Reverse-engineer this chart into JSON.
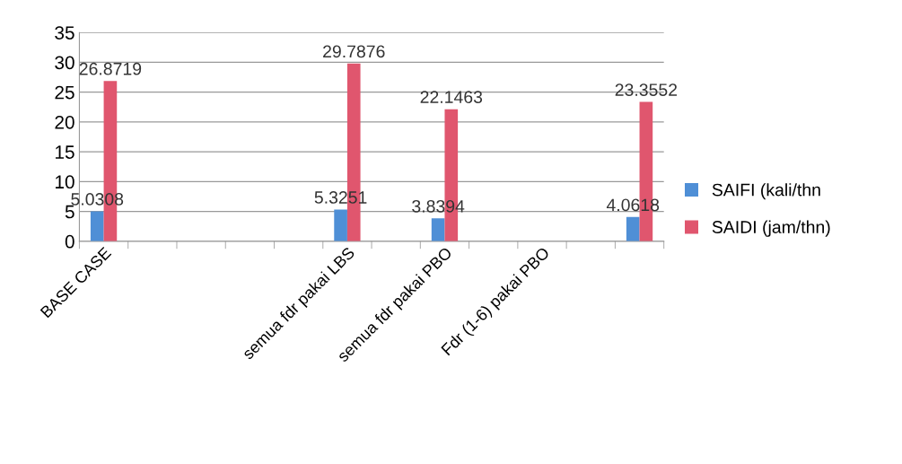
{
  "chart_data": {
    "type": "bar",
    "categories": [
      "BASE CASE",
      null,
      null,
      null,
      null,
      "semua fdr pakai LBS",
      null,
      "semua fdr pakai PBO",
      null,
      "Fdr (1-6) pakai PBO",
      null,
      null
    ],
    "series": [
      {
        "name": "SAIFI (kali/thn",
        "color": "#4f8fd6",
        "values": [
          5.0308,
          null,
          null,
          null,
          null,
          5.3251,
          null,
          3.8394,
          null,
          null,
          null,
          4.0618
        ]
      },
      {
        "name": "SAIDI (jam/thn)",
        "color": "#e0566e",
        "values": [
          26.8719,
          null,
          null,
          null,
          null,
          29.7876,
          null,
          22.1463,
          null,
          null,
          null,
          23.3552
        ]
      }
    ],
    "ylim": [
      0,
      35
    ],
    "yticks": [
      0,
      5,
      10,
      15,
      20,
      25,
      30,
      35
    ],
    "grid": "y",
    "legend": "right",
    "data_labels": true
  }
}
